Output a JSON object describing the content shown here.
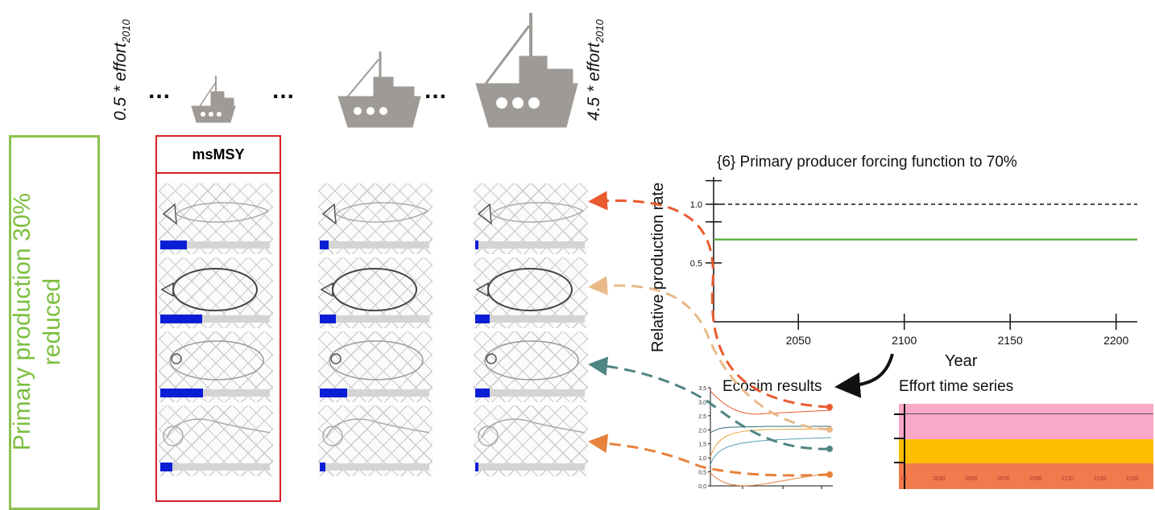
{
  "effort_min_label": {
    "text": "0.5 * effort",
    "sub": "2010"
  },
  "effort_max_label": {
    "text": "4.5 * effort",
    "sub": "2010"
  },
  "ellipsis": "...",
  "scenario_label": "Primary production 30% reduced",
  "msmsy_label": "msMSY",
  "species_columns": [
    {
      "bars": [
        0.24,
        0.38,
        0.39,
        0.11
      ]
    },
    {
      "bars": [
        0.08,
        0.15,
        0.25,
        0.05
      ]
    },
    {
      "bars": [
        0.03,
        0.13,
        0.13,
        0.03
      ]
    }
  ],
  "forcing_chart": {
    "title": "{6} Primary producer forcing function to 70%",
    "ylabel": "Relative production rate",
    "xlabel": "Year",
    "y_ticks": [
      "0.5",
      "1.0"
    ],
    "x_ticks": [
      "2050",
      "2100",
      "2150",
      "2200"
    ]
  },
  "chart_data": {
    "type": "line",
    "title": "{6} Primary producer forcing function to 70%",
    "xlabel": "Year",
    "ylabel": "Relative production rate",
    "xlim": [
      2010,
      2210
    ],
    "ylim": [
      0,
      1.3
    ],
    "series": [
      {
        "x": [
          2010,
          2210
        ],
        "values": [
          0.7,
          0.7
        ],
        "color": "#6ab04c"
      },
      {
        "x": [
          2010,
          2210
        ],
        "values": [
          1.0,
          1.0
        ],
        "color": "#111111",
        "style": "dashed"
      }
    ]
  },
  "ecosim": {
    "title": "Ecosim results",
    "y_ticks": [
      "0,0",
      "0,5",
      "1,0",
      "1,5",
      "2,0",
      "2,5",
      "3,0",
      "3,5"
    ]
  },
  "effort_series": {
    "title": "Effort time series",
    "x_ticks": [
      "10",
      "2030",
      "2050",
      "2070",
      "2090",
      "2110",
      "2130",
      "2150"
    ],
    "colors": {
      "top": "#f9a8c8",
      "middle": "#ffbf00",
      "bottom": "#f27a4d"
    }
  },
  "arrow_colors": [
    "#ea5a2f",
    "#e9b98a",
    "#4f8583",
    "#e8813b"
  ]
}
